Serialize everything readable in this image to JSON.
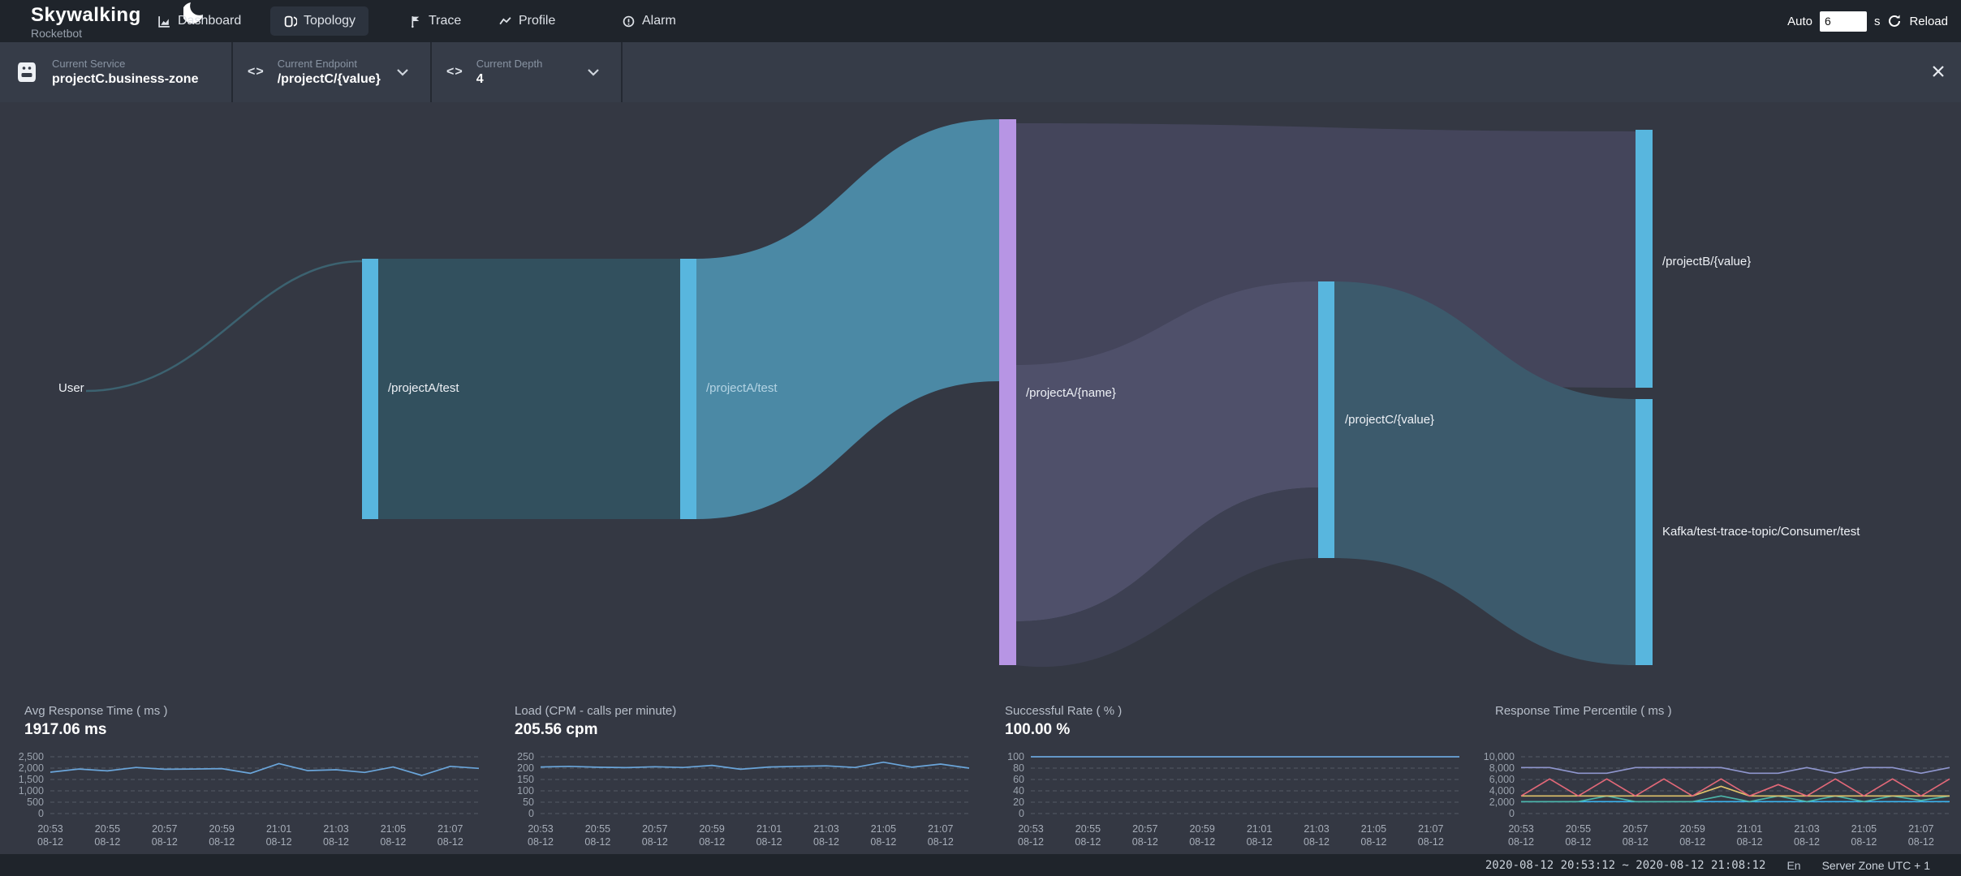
{
  "header": {
    "logo_title": "Skywalking",
    "logo_subtitle": "Rocketbot",
    "tabs": [
      {
        "label": "Dashboard",
        "icon": "dashboard-icon",
        "active": false
      },
      {
        "label": "Topology",
        "icon": "topology-icon",
        "active": true
      },
      {
        "label": "Trace",
        "icon": "trace-icon",
        "active": false
      },
      {
        "label": "Profile",
        "icon": "profile-icon",
        "active": false
      },
      {
        "label": "Alarm",
        "icon": "alarm-icon",
        "active": false
      }
    ],
    "auto_label": "Auto",
    "auto_value": "6",
    "auto_unit": "s",
    "reload_label": "Reload"
  },
  "toolbar": {
    "selectors": [
      {
        "icon": "service-icon",
        "label": "Current Service",
        "value": "projectC.business-zone",
        "has_chevron": false
      },
      {
        "icon": "code-icon",
        "label": "Current Endpoint",
        "value": "/projectC/{value}",
        "has_chevron": true
      },
      {
        "icon": "code-icon",
        "label": "Current Depth",
        "value": "4",
        "has_chevron": true
      }
    ]
  },
  "sankey": {
    "nodes": [
      {
        "label": "User"
      },
      {
        "label": "/projectA/test"
      },
      {
        "label": "/projectA/test"
      },
      {
        "label": "/projectA/{name}"
      },
      {
        "label": "/projectC/{value}"
      },
      {
        "label": "/projectB/{value}"
      },
      {
        "label": "Kafka/test-trace-topic/Consumer/test"
      }
    ],
    "links": [
      {
        "source": "User",
        "target": "/projectA/test"
      },
      {
        "source": "/projectA/test",
        "target": "/projectA/test"
      },
      {
        "source": "/projectA/test",
        "target": "/projectA/{name}"
      },
      {
        "source": "/projectA/{name}",
        "target": "/projectB/{value}"
      },
      {
        "source": "/projectA/{name}",
        "target": "/projectC/{value}"
      },
      {
        "source": "/projectC/{value}",
        "target": "Kafka/test-trace-topic/Consumer/test"
      }
    ]
  },
  "chart_data": [
    {
      "type": "line",
      "title": "Avg Response Time ( ms )",
      "big_value": "1917.06 ms",
      "ylim": [
        0,
        2500
      ],
      "yticks": [
        "2,500",
        "2,000",
        "1,500",
        "1,000",
        "500",
        "0"
      ],
      "categories": [
        "20:53",
        "20:55",
        "20:57",
        "20:59",
        "21:01",
        "21:03",
        "21:05",
        "21:07"
      ],
      "date_label": "08-12",
      "series": [
        {
          "name": "avg-response-time",
          "color": "#6aa5da",
          "values": [
            1820,
            1960,
            1880,
            2030,
            1950,
            1960,
            1980,
            1770,
            2200,
            1890,
            1930,
            1810,
            2050,
            1680,
            2080,
            1990
          ]
        }
      ]
    },
    {
      "type": "line",
      "title": "Load (CPM - calls per minute)",
      "big_value": "205.56 cpm",
      "ylim": [
        0,
        250
      ],
      "yticks": [
        "250",
        "200",
        "150",
        "100",
        "50",
        "0"
      ],
      "categories": [
        "20:53",
        "20:55",
        "20:57",
        "20:59",
        "21:01",
        "21:03",
        "21:05",
        "21:07"
      ],
      "date_label": "08-12",
      "series": [
        {
          "name": "load-cpm",
          "color": "#6aa5da",
          "values": [
            205,
            208,
            204,
            202,
            206,
            203,
            212,
            195,
            205,
            208,
            210,
            203,
            226,
            204,
            218,
            200
          ]
        }
      ]
    },
    {
      "type": "line",
      "title": "Successful Rate ( % )",
      "big_value": "100.00 %",
      "ylim": [
        0,
        100
      ],
      "yticks": [
        "100",
        "80",
        "60",
        "40",
        "20",
        "0"
      ],
      "categories": [
        "20:53",
        "20:55",
        "20:57",
        "20:59",
        "21:01",
        "21:03",
        "21:05",
        "21:07"
      ],
      "date_label": "08-12",
      "series": [
        {
          "name": "successful-rate",
          "color": "#6aa5da",
          "values": [
            100,
            100,
            100,
            100,
            100,
            100,
            100,
            100,
            100,
            100,
            100,
            100,
            100,
            100,
            100,
            100
          ]
        }
      ]
    },
    {
      "type": "line",
      "title": "Response Time Percentile ( ms )",
      "big_value": "",
      "ylim": [
        0,
        10000
      ],
      "yticks": [
        "10,000",
        "8,000",
        "6,000",
        "4,000",
        "2,000",
        "0"
      ],
      "categories": [
        "20:53",
        "20:55",
        "20:57",
        "20:59",
        "21:01",
        "21:03",
        "21:05",
        "21:07"
      ],
      "date_label": "08-12",
      "series": [
        {
          "name": "p50",
          "color": "#3cb4ef",
          "values": [
            2100,
            2100,
            2100,
            2100,
            2100,
            2100,
            2100,
            2100,
            2100,
            2100,
            2100,
            2100,
            2100,
            2100,
            2100,
            2100
          ]
        },
        {
          "name": "p75",
          "color": "#4cb6aa",
          "values": [
            2100,
            2100,
            2100,
            3100,
            2100,
            2100,
            2100,
            3100,
            2100,
            3100,
            2100,
            3100,
            2100,
            3100,
            2300,
            3100
          ]
        },
        {
          "name": "p90",
          "color": "#e0c26a",
          "values": [
            3100,
            3100,
            3100,
            3100,
            3100,
            3100,
            3100,
            4800,
            3100,
            3100,
            3100,
            3100,
            3100,
            3100,
            3100,
            3100
          ]
        },
        {
          "name": "p95",
          "color": "#e26878",
          "values": [
            3100,
            6100,
            3100,
            6100,
            3100,
            6100,
            3100,
            6100,
            3100,
            5100,
            3100,
            6100,
            3100,
            6100,
            3100,
            6100
          ]
        },
        {
          "name": "p99",
          "color": "#8f96ce",
          "values": [
            8100,
            8100,
            7100,
            7100,
            8100,
            8100,
            8100,
            8100,
            7100,
            7100,
            8100,
            7100,
            8100,
            8100,
            7100,
            8100
          ]
        }
      ]
    }
  ],
  "footer": {
    "time_range": "2020-08-12 20:53:12 ~ 2020-08-12 21:08:12",
    "language": "En",
    "server_zone": "Server Zone UTC + 1"
  },
  "colors": {
    "node_cyan": "#58b6de",
    "node_purple": "#b795e4",
    "link_bright_teal": "#4d8dab",
    "link_dark_teal": "#32505e",
    "link_gray_purple": "#44455b",
    "background": "#343843",
    "bar_dark": "#1f242b"
  }
}
